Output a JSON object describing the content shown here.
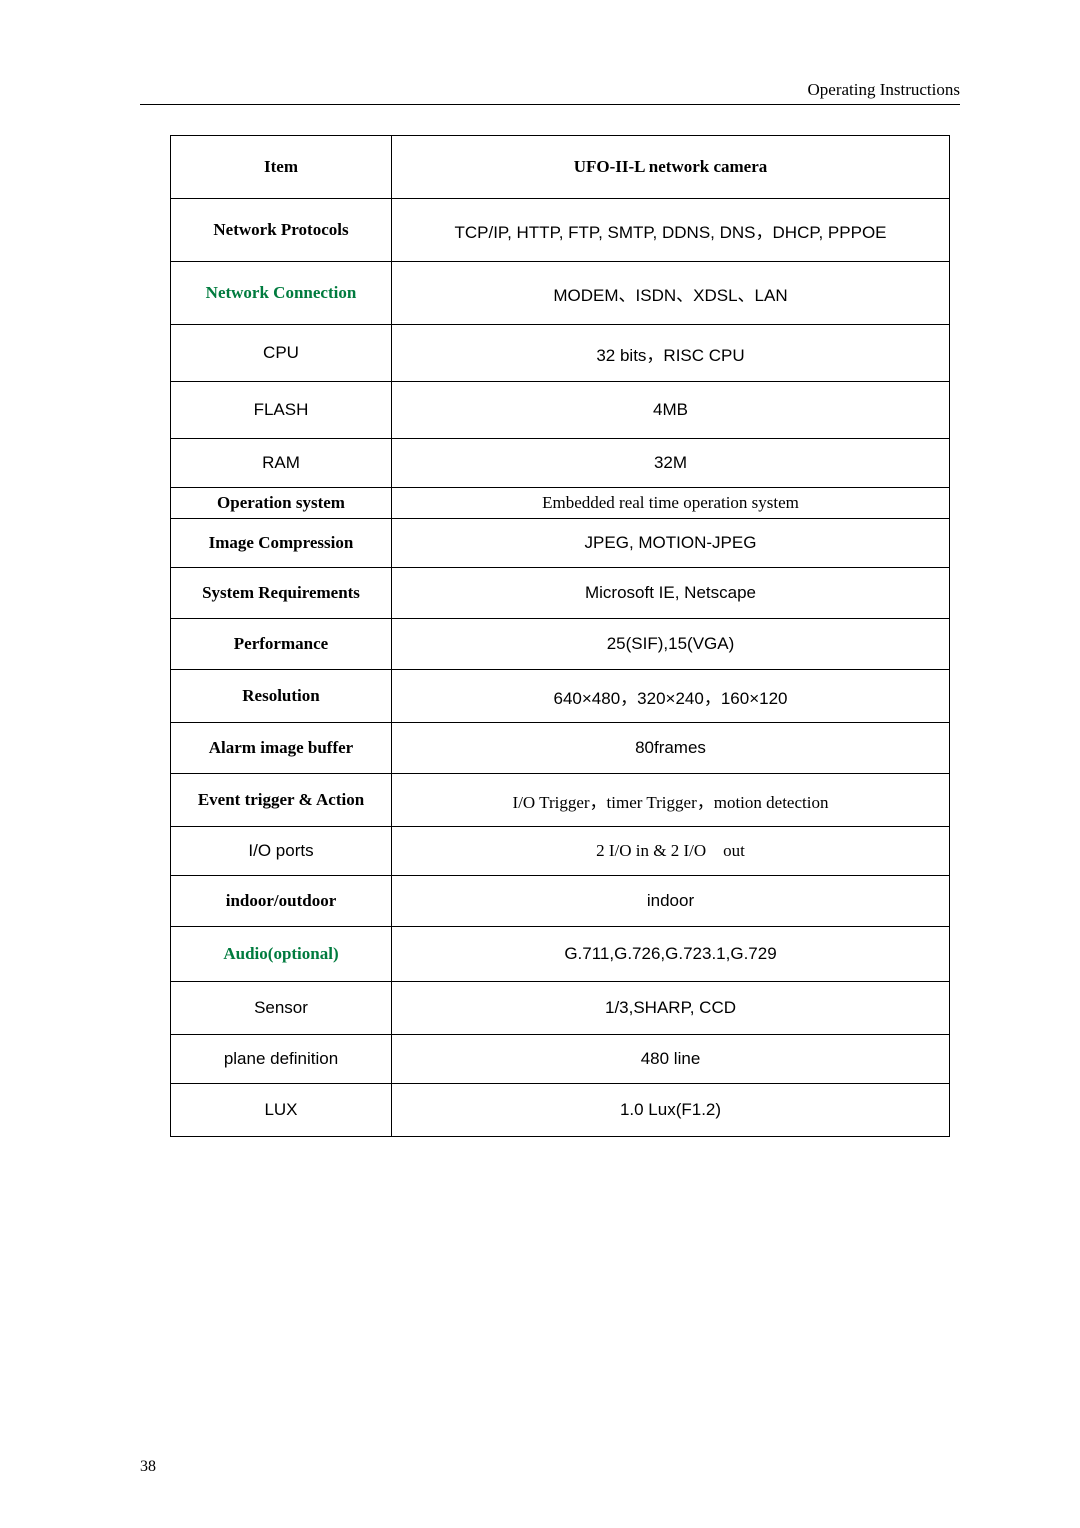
{
  "running_head": "Operating Instructions",
  "page_number": "38",
  "colors": {
    "green": "#007b3e",
    "black": "#000000",
    "bg": "#ffffff"
  },
  "spec_table": {
    "header": {
      "label": "Item",
      "value": "UFO-II-L network camera"
    },
    "rows": [
      {
        "label": "Network Protocols",
        "value": "TCP/IP, HTTP, FTP, SMTP, DDNS, DNS，DHCP, PPPOE",
        "label_style": "serif-bold",
        "value_style": "sans-val",
        "height": "h-med"
      },
      {
        "label": "Network Connection",
        "value": "MODEM、ISDN、XDSL、LAN",
        "label_style": "serif-bold green",
        "value_style": "sans-val",
        "height": "h-med"
      },
      {
        "label": "CPU",
        "value": "32 bits，RISC CPU",
        "label_style": "sans",
        "value_style": "sans-val",
        "height": "h-med2"
      },
      {
        "label": "FLASH",
        "value": "4MB",
        "label_style": "sans",
        "value_style": "sans-val",
        "height": "h-med2"
      },
      {
        "label": "RAM",
        "value": "32M",
        "label_style": "sans",
        "value_style": "sans-val",
        "height": "h-mid"
      },
      {
        "label": "Operation system",
        "value": "Embedded real time operation system",
        "label_style": "serif-bold",
        "value_style": "serif-val",
        "height": "h-small"
      },
      {
        "label": "Image Compression",
        "value": "JPEG, MOTION-JPEG",
        "label_style": "serif-bold",
        "value_style": "sans-val",
        "height": "h-mid"
      },
      {
        "label": "System Requirements",
        "value": "Microsoft IE, Netscape",
        "label_style": "serif-bold",
        "value_style": "sans-val",
        "height": "h-mid3"
      },
      {
        "label": "Performance",
        "value": "25(SIF),15(VGA)",
        "label_style": "serif-bold",
        "value_style": "sans-val",
        "height": "h-mid3"
      },
      {
        "label": "Resolution",
        "value": "640×480，320×240，160×120",
        "label_style": "serif-bold",
        "value_style": "sans-val",
        "height": "h-mid2"
      },
      {
        "label": "Alarm image buffer",
        "value": "80frames",
        "label_style": "serif-bold",
        "value_style": "sans-val",
        "height": "h-mid3"
      },
      {
        "label": "Event trigger & Action",
        "value": "I/O Trigger，timer Trigger，motion detection",
        "label_style": "serif-bold",
        "value_style": "serif-val",
        "height": "h-mid2"
      },
      {
        "label": "I/O ports",
        "value": "2 I/O in & 2 I/O out",
        "label_style": "sans",
        "value_style": "serif-val",
        "height": "h-mid"
      },
      {
        "label": "indoor/outdoor",
        "value": "indoor",
        "label_style": "serif-bold",
        "value_style": "sans-val",
        "height": "h-mid3"
      },
      {
        "label": "Audio(optional)",
        "value": "G.711,G.726,G.723.1,G.729",
        "label_style": "serif-bold green",
        "value_style": "sans-val",
        "height": "h-mid4"
      },
      {
        "label": "Sensor",
        "value": "1/3,SHARP, CCD",
        "label_style": "sans",
        "value_style": "sans-val",
        "height": "h-mid2"
      },
      {
        "label": "plane definition",
        "value": "480 line",
        "label_style": "sans",
        "value_style": "sans-val",
        "height": "h-mid"
      },
      {
        "label": "LUX",
        "value": "1.0 Lux(F1.2)",
        "label_style": "sans",
        "value_style": "sans-val",
        "height": "h-mid2"
      }
    ]
  }
}
